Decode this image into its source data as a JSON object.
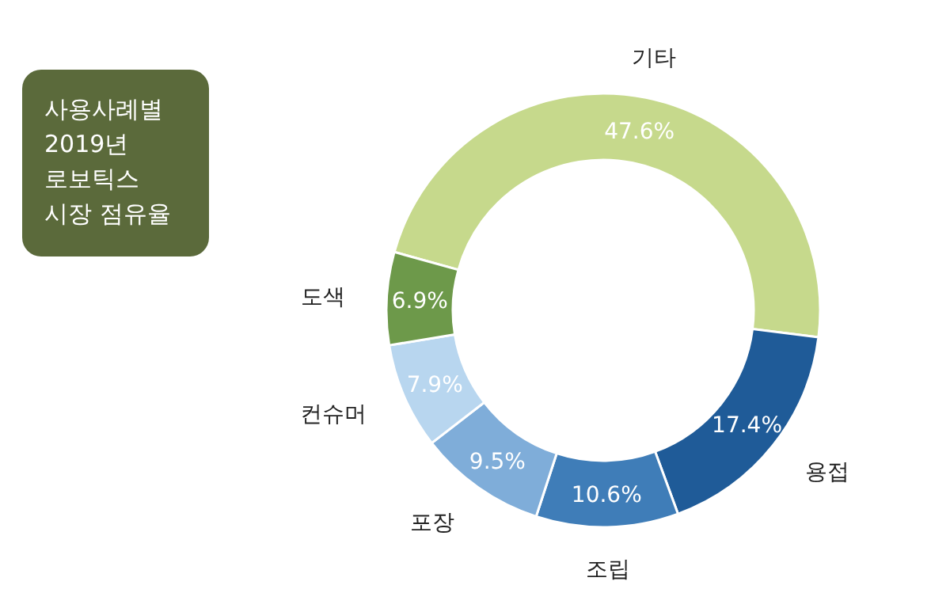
{
  "chart_data": {
    "type": "donut",
    "title": "사용사례별\n2019년\n로보틱스\n시장 점유율",
    "categories": [
      "기타",
      "용접",
      "조립",
      "포장",
      "컨슈머",
      "도색"
    ],
    "values": [
      47.6,
      17.4,
      10.6,
      9.5,
      7.9,
      6.9
    ],
    "value_labels": [
      "47.6%",
      "17.4%",
      "10.6%",
      "9.5%",
      "7.9%",
      "6.9%"
    ],
    "colors": [
      "#c6d98c",
      "#1f5b98",
      "#3f7db8",
      "#7fadd9",
      "#b8d6ef",
      "#6d994a"
    ]
  }
}
